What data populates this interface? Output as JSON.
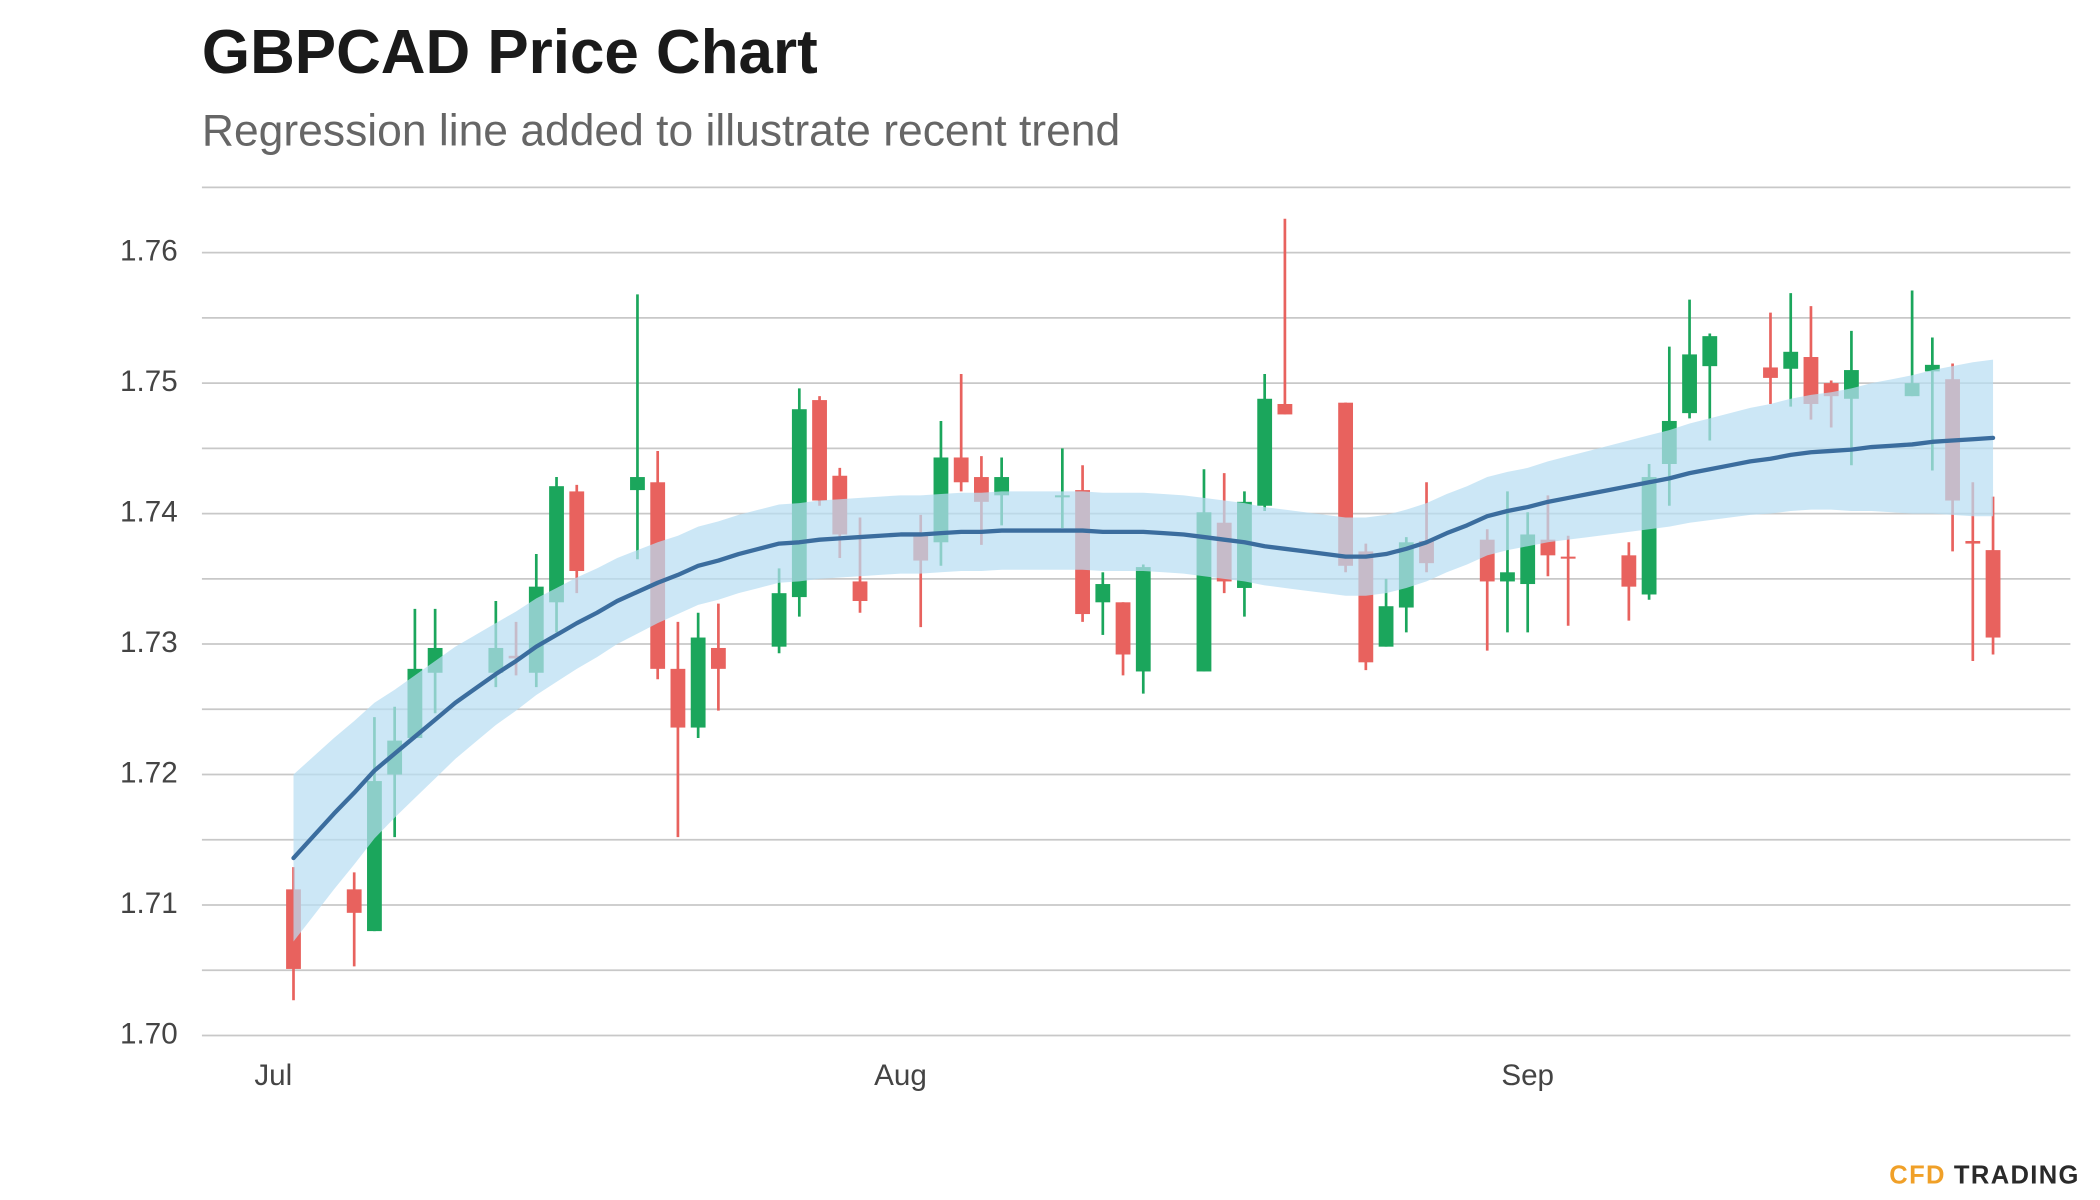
{
  "chart_data": {
    "type": "candlestick",
    "title": "GBPCAD Price Chart",
    "subtitle": "Regression line added to illustrate recent trend",
    "categories": [
      "Jul",
      null,
      null,
      null,
      null,
      null,
      null,
      null,
      null,
      null,
      null,
      null,
      null,
      null,
      null,
      null,
      null,
      null,
      null,
      null,
      null,
      null,
      null,
      null,
      null,
      null,
      null,
      null,
      null,
      null,
      null,
      "Aug",
      null,
      null,
      null,
      null,
      null,
      null,
      null,
      null,
      null,
      null,
      null,
      null,
      null,
      null,
      null,
      null,
      null,
      null,
      null,
      null,
      null,
      null,
      null,
      null,
      null,
      null,
      null,
      null,
      null,
      null,
      "Sep",
      null,
      null,
      null,
      null,
      null,
      null,
      null,
      null,
      null,
      null,
      null,
      null,
      null,
      null,
      null,
      null,
      null,
      null,
      null,
      null,
      null,
      null,
      null
    ],
    "open": [
      null,
      1.7112,
      null,
      null,
      1.7112,
      1.708,
      1.72,
      1.7228,
      1.7278,
      null,
      null,
      1.7278,
      1.7291,
      1.7278,
      1.7332,
      1.7417,
      null,
      null,
      1.7418,
      1.7424,
      1.7281,
      1.7236,
      1.7297,
      null,
      null,
      1.7298,
      1.7336,
      1.7487,
      1.7429,
      1.7348,
      null,
      null,
      1.7383,
      1.7378,
      1.7443,
      1.7428,
      1.7414,
      null,
      null,
      1.7413,
      1.7418,
      1.7332,
      1.7332,
      1.7279,
      null,
      null,
      1.7279,
      1.7393,
      1.7343,
      1.7406,
      1.7484,
      null,
      null,
      1.7485,
      1.7371,
      1.7298,
      1.7328,
      1.7379,
      null,
      null,
      1.738,
      1.7348,
      1.7346,
      1.738,
      1.7367,
      null,
      null,
      1.7368,
      1.7338,
      1.7438,
      1.7477,
      1.7513,
      null,
      null,
      1.7512,
      1.7511,
      1.752,
      1.75,
      1.7488,
      null,
      null,
      1.749,
      1.7509,
      1.7503,
      1.7379,
      1.7372
    ],
    "high": [
      null,
      1.7129,
      null,
      null,
      1.7125,
      1.7244,
      1.7252,
      1.7327,
      1.7327,
      null,
      null,
      1.7333,
      1.7317,
      1.7369,
      1.7428,
      1.7422,
      null,
      null,
      1.7568,
      1.7448,
      1.7317,
      1.7324,
      1.7331,
      null,
      null,
      1.7358,
      1.7496,
      1.749,
      1.7435,
      1.7397,
      null,
      null,
      1.7399,
      1.7471,
      1.7507,
      1.7444,
      1.7443,
      null,
      null,
      1.745,
      1.7437,
      1.7355,
      1.7332,
      1.7361,
      null,
      null,
      1.7434,
      1.7431,
      1.7417,
      1.7507,
      1.7626,
      null,
      null,
      1.7485,
      1.7377,
      1.735,
      1.7382,
      1.7424,
      null,
      null,
      1.7388,
      1.7417,
      1.7401,
      1.7414,
      1.7383,
      null,
      null,
      1.7378,
      1.7438,
      1.7528,
      1.7564,
      1.7538,
      null,
      null,
      1.7554,
      1.7569,
      1.7559,
      1.7502,
      1.754,
      null,
      null,
      1.7571,
      1.7535,
      1.7515,
      1.7424,
      1.7413
    ],
    "low": [
      null,
      1.7027,
      null,
      null,
      1.7053,
      1.708,
      1.7152,
      1.7228,
      1.7247,
      null,
      null,
      1.7267,
      1.7276,
      1.7267,
      1.7309,
      1.7339,
      null,
      null,
      1.7365,
      1.7273,
      1.7152,
      1.7228,
      1.7249,
      null,
      null,
      1.7293,
      1.7321,
      1.7406,
      1.7366,
      1.7324,
      null,
      null,
      1.7313,
      1.736,
      1.7417,
      1.7376,
      1.7391,
      null,
      null,
      1.7389,
      1.7317,
      1.7307,
      1.7276,
      1.7262,
      null,
      null,
      1.7279,
      1.7339,
      1.7321,
      1.7402,
      1.7476,
      null,
      null,
      1.7355,
      1.728,
      1.7298,
      1.7309,
      1.7355,
      null,
      null,
      1.7295,
      1.7309,
      1.7309,
      1.7352,
      1.7314,
      null,
      null,
      1.7318,
      1.7334,
      1.7406,
      1.7473,
      1.7456,
      null,
      null,
      1.7484,
      1.7482,
      1.7472,
      1.7466,
      1.7437,
      null,
      null,
      1.749,
      1.7433,
      1.7371,
      1.7287,
      1.7292
    ],
    "close": [
      null,
      1.7051,
      null,
      null,
      1.7094,
      1.7195,
      1.7226,
      1.7281,
      1.7297,
      null,
      null,
      1.7297,
      1.7289,
      1.7344,
      1.7421,
      1.7356,
      null,
      null,
      1.7428,
      1.7281,
      1.7236,
      1.7305,
      1.7281,
      null,
      null,
      1.7339,
      1.748,
      1.741,
      1.7384,
      1.7333,
      null,
      null,
      1.7364,
      1.7443,
      1.7424,
      1.7409,
      1.7428,
      null,
      null,
      1.7414,
      1.7323,
      1.7346,
      1.7292,
      1.7359,
      null,
      null,
      1.7401,
      1.7348,
      1.7409,
      1.7488,
      1.7476,
      null,
      null,
      1.736,
      1.7286,
      1.7329,
      1.7378,
      1.7362,
      null,
      null,
      1.7348,
      1.7355,
      1.7384,
      1.7368,
      1.7366,
      null,
      null,
      1.7344,
      1.7428,
      1.7471,
      1.7522,
      1.7536,
      null,
      null,
      1.7504,
      1.7524,
      1.7484,
      1.749,
      1.751,
      null,
      null,
      1.75,
      1.7514,
      1.741,
      1.7377,
      1.7305
    ],
    "up_color": "#1ba65c",
    "down_color": "#e8625e",
    "regression": {
      "color": "#3b6d9e",
      "band_color": "#b9def3",
      "values": [
        null,
        1.7136,
        1.7153,
        1.717,
        1.7186,
        1.7203,
        1.7216,
        1.7229,
        1.7242,
        1.7255,
        1.7266,
        1.7277,
        1.7287,
        1.7298,
        1.7307,
        1.7316,
        1.7324,
        1.7333,
        1.734,
        1.7347,
        1.7353,
        1.736,
        1.7364,
        1.7369,
        1.7373,
        1.7377,
        1.7378,
        1.738,
        1.7381,
        1.7382,
        1.7383,
        1.7384,
        1.7384,
        1.7385,
        1.7386,
        1.7386,
        1.7387,
        1.7387,
        1.7387,
        1.7387,
        1.7387,
        1.7386,
        1.7386,
        1.7386,
        1.7385,
        1.7384,
        1.7382,
        1.738,
        1.7378,
        1.7375,
        1.7373,
        1.7371,
        1.7369,
        1.7367,
        1.7367,
        1.7369,
        1.7373,
        1.7378,
        1.7385,
        1.7391,
        1.7398,
        1.7402,
        1.7405,
        1.7409,
        1.7412,
        1.7415,
        1.7418,
        1.7421,
        1.7424,
        1.7427,
        1.7431,
        1.7434,
        1.7437,
        1.744,
        1.7442,
        1.7445,
        1.7447,
        1.7448,
        1.7449,
        1.7451,
        1.7452,
        1.7453,
        1.7455,
        1.7456,
        1.7457,
        1.7458
      ],
      "ci": [
        null,
        0.0064,
        0.0061,
        0.0058,
        0.0055,
        0.0052,
        0.0049,
        0.0047,
        0.0045,
        0.0043,
        0.0041,
        0.0039,
        0.0038,
        0.0037,
        0.0036,
        0.0035,
        0.0034,
        0.0033,
        0.0032,
        0.0031,
        0.003,
        0.003,
        0.003,
        0.003,
        0.003,
        0.003,
        0.003,
        0.003,
        0.003,
        0.003,
        0.003,
        0.003,
        0.003,
        0.003,
        0.003,
        0.003,
        0.003,
        0.003,
        0.003,
        0.003,
        0.003,
        0.003,
        0.003,
        0.003,
        0.003,
        0.003,
        0.003,
        0.003,
        0.003,
        0.003,
        0.003,
        0.003,
        0.003,
        0.003,
        0.003,
        0.003,
        0.003,
        0.003,
        0.003,
        0.003,
        0.003,
        0.003,
        0.003,
        0.0031,
        0.0032,
        0.0033,
        0.0034,
        0.0035,
        0.0036,
        0.0037,
        0.0038,
        0.0039,
        0.004,
        0.0041,
        0.0042,
        0.0043,
        0.0044,
        0.0045,
        0.0047,
        0.0049,
        0.0051,
        0.0053,
        0.0055,
        0.0057,
        0.0059,
        0.006
      ]
    },
    "ylim": [
      1.7,
      1.765
    ],
    "yticks": [
      {
        "value": 1.7,
        "label": "1.70"
      },
      1.71,
      1.72,
      1.73,
      1.74,
      1.75,
      1.76
    ],
    "minor_yticks": [
      1.705,
      1.715,
      1.725,
      1.735,
      1.745,
      1.755,
      1.765
    ],
    "grid": true
  },
  "logo": {
    "cfd": "CFD",
    "trading": "TRADING"
  }
}
